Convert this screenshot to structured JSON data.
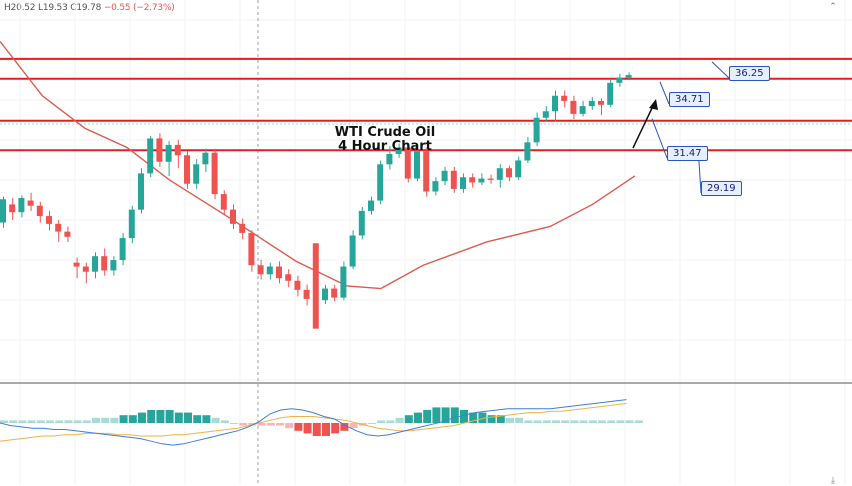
{
  "header": {
    "high": "H20.52",
    "low": "L19.53",
    "close": "C19.78",
    "change": "−0.55 (−2.73%)"
  },
  "title_lines": [
    "WTI Crude Oil",
    "4 Hour Chart"
  ],
  "icons": {
    "top_right": "settings-icon",
    "bottom_right": "scroll-down-icon"
  },
  "colors": {
    "up": "#26a69a",
    "down": "#ef5350",
    "level_line": "#e02020",
    "ma_line": "#e05a4e",
    "callout_border": "#2a53c8",
    "callout_fill": "#e6efff",
    "macd_line": "#3f7fd8",
    "signal_line": "#f0b24b"
  },
  "chart_data": {
    "type": "candlestick",
    "title": "WTI Crude Oil 4 Hour Chart",
    "ylim": [
      11.2,
      40.8
    ],
    "levels": [
      36.25,
      34.71,
      31.47,
      29.19
    ],
    "level_labels": [
      "36.25",
      "34.71",
      "31.47",
      "29.19"
    ],
    "candles": [
      [
        23.6,
        25.4,
        23.2,
        25.6
      ],
      [
        25.0,
        24.4,
        23.8,
        25.5
      ],
      [
        24.4,
        25.5,
        24.0,
        25.7
      ],
      [
        25.3,
        24.9,
        24.5,
        25.9
      ],
      [
        24.9,
        24.1,
        23.6,
        25.2
      ],
      [
        24.1,
        23.5,
        23.0,
        24.5
      ],
      [
        23.5,
        22.9,
        22.1,
        23.8
      ],
      [
        22.9,
        22.5,
        22.1,
        23.3
      ],
      [
        20.5,
        20.2,
        19.3,
        20.9
      ],
      [
        20.2,
        19.8,
        18.9,
        20.5
      ],
      [
        19.8,
        21.0,
        19.3,
        21.3
      ],
      [
        21.0,
        19.9,
        19.5,
        21.6
      ],
      [
        19.9,
        20.7,
        19.5,
        21.0
      ],
      [
        20.7,
        22.4,
        20.3,
        22.8
      ],
      [
        22.4,
        24.6,
        22.0,
        24.9
      ],
      [
        24.6,
        27.4,
        24.3,
        27.8
      ],
      [
        27.4,
        30.1,
        27.1,
        30.3
      ],
      [
        30.1,
        28.3,
        27.9,
        30.5
      ],
      [
        28.3,
        29.6,
        27.2,
        29.9
      ],
      [
        29.6,
        28.8,
        27.8,
        30.0
      ],
      [
        28.8,
        26.6,
        26.2,
        29.1
      ],
      [
        26.6,
        28.1,
        26.2,
        28.5
      ],
      [
        28.1,
        29.0,
        27.5,
        29.3
      ],
      [
        29.0,
        25.8,
        25.4,
        29.3
      ],
      [
        25.8,
        24.6,
        24.2,
        26.1
      ],
      [
        24.6,
        23.5,
        23.1,
        25.0
      ],
      [
        23.5,
        22.8,
        22.3,
        23.9
      ],
      [
        22.8,
        20.3,
        19.8,
        23.0
      ],
      [
        20.3,
        19.6,
        19.2,
        20.7
      ],
      [
        19.6,
        20.2,
        19.2,
        20.5
      ],
      [
        20.2,
        19.3,
        18.9,
        20.6
      ],
      [
        19.6,
        19.1,
        18.6,
        20.0
      ],
      [
        19.1,
        18.4,
        17.9,
        19.5
      ],
      [
        18.4,
        17.7,
        17.2,
        18.8
      ],
      [
        22.0,
        15.4,
        15.4,
        22.0
      ],
      [
        17.6,
        18.5,
        17.3,
        18.8
      ],
      [
        18.5,
        17.8,
        17.5,
        18.8
      ],
      [
        17.8,
        20.2,
        17.6,
        20.6
      ],
      [
        20.2,
        22.6,
        20.0,
        23.0
      ],
      [
        22.6,
        24.5,
        22.3,
        24.8
      ],
      [
        24.5,
        25.3,
        24.2,
        25.6
      ],
      [
        25.3,
        28.1,
        25.0,
        28.4
      ],
      [
        28.1,
        28.9,
        27.7,
        29.5
      ],
      [
        28.9,
        29.4,
        28.6,
        29.7
      ],
      [
        29.4,
        27.0,
        26.7,
        29.7
      ],
      [
        27.0,
        29.1,
        26.8,
        29.4
      ],
      [
        29.1,
        26.0,
        25.6,
        29.4
      ],
      [
        26.0,
        26.8,
        25.7,
        27.1
      ],
      [
        26.8,
        27.6,
        26.5,
        27.9
      ],
      [
        27.6,
        26.2,
        25.9,
        27.9
      ],
      [
        26.2,
        27.1,
        25.9,
        27.4
      ],
      [
        27.1,
        26.7,
        26.3,
        27.4
      ],
      [
        26.7,
        27.0,
        26.5,
        27.4
      ],
      [
        27.0,
        26.9,
        26.6,
        27.3
      ],
      [
        26.9,
        27.8,
        26.3,
        28.1
      ],
      [
        27.8,
        27.1,
        26.8,
        28.0
      ],
      [
        27.1,
        28.4,
        26.9,
        28.7
      ],
      [
        28.4,
        29.8,
        28.2,
        30.2
      ],
      [
        29.8,
        31.7,
        29.5,
        32.1
      ],
      [
        31.7,
        32.2,
        31.4,
        32.6
      ],
      [
        32.2,
        33.4,
        31.4,
        33.8
      ],
      [
        33.4,
        33.0,
        32.5,
        33.8
      ],
      [
        33.0,
        32.0,
        31.6,
        33.4
      ],
      [
        32.0,
        32.6,
        31.8,
        33.0
      ],
      [
        32.6,
        33.0,
        32.3,
        33.3
      ],
      [
        33.0,
        32.7,
        31.9,
        33.2
      ],
      [
        32.7,
        34.4,
        32.5,
        34.7
      ],
      [
        34.4,
        34.8,
        34.1,
        35.1
      ],
      [
        34.8,
        35.0,
        34.6,
        35.2
      ]
    ],
    "moving_average": [
      [
        0,
        37.6
      ],
      [
        10,
        33.4
      ],
      [
        20,
        30.9
      ],
      [
        30,
        29.4
      ],
      [
        40,
        26.9
      ],
      [
        55,
        23.8
      ],
      [
        70,
        20.6
      ],
      [
        82,
        18.7
      ],
      [
        90,
        18.5
      ],
      [
        100,
        20.3
      ],
      [
        115,
        22.1
      ],
      [
        130,
        23.3
      ],
      [
        140,
        25.0
      ],
      [
        150,
        27.2
      ]
    ],
    "macd": {
      "histogram": [
        1,
        1,
        1,
        1,
        1,
        1,
        1,
        1,
        1,
        1,
        2,
        2,
        2,
        3,
        3,
        4,
        5,
        5,
        5,
        4,
        4,
        3,
        3,
        2,
        1,
        0,
        -1,
        -1,
        -1,
        -1,
        -1,
        -2,
        -3,
        -4,
        -5,
        -5,
        -4,
        -3,
        -2,
        -1,
        0,
        1,
        1,
        2,
        3,
        4,
        5,
        6,
        6,
        6,
        5,
        4,
        4,
        3,
        3,
        2,
        2,
        1,
        1,
        1,
        1,
        1,
        1,
        1,
        1,
        1,
        1,
        1,
        1,
        1
      ],
      "macd_line": [
        0,
        -2,
        -3,
        -4,
        -4,
        -5,
        -5,
        -6,
        -7,
        -8,
        -9,
        -10,
        -11,
        -12,
        -14,
        -16,
        -17,
        -16,
        -14,
        -12,
        -10,
        -8,
        -6,
        -3,
        1,
        7,
        10,
        11,
        10,
        8,
        5,
        3,
        -2,
        -6,
        -9,
        -10,
        -9,
        -7,
        -5,
        -3,
        -1,
        1,
        4,
        6,
        8,
        9,
        10,
        11,
        11,
        11,
        11,
        11,
        12,
        13,
        14,
        15,
        16,
        17,
        18
      ],
      "signal_line": [
        -14,
        -13,
        -12,
        -11,
        -10,
        -10,
        -9,
        -9,
        -8,
        -8,
        -8,
        -9,
        -9,
        -10,
        -10,
        -10,
        -9,
        -9,
        -8,
        -7,
        -6,
        -5,
        -4,
        -2,
        0,
        2,
        4,
        5,
        5,
        5,
        4,
        3,
        2,
        0,
        -2,
        -4,
        -5,
        -6,
        -6,
        -5,
        -4,
        -3,
        -2,
        0,
        2,
        4,
        5,
        6,
        7,
        8,
        8,
        9,
        9,
        10,
        11,
        12,
        13,
        14,
        15
      ]
    }
  }
}
